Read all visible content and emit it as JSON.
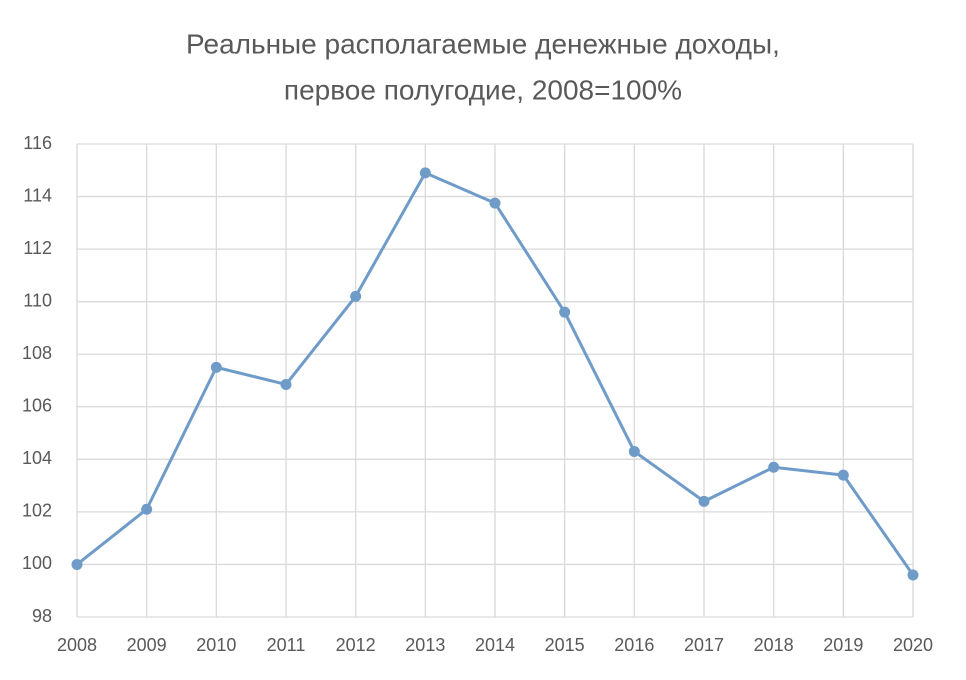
{
  "chart_data": {
    "type": "line",
    "title": [
      "Реальные располагаемые денежные доходы,",
      "первое полугодие, 2008=100%"
    ],
    "x": [
      2008,
      2009,
      2010,
      2011,
      2012,
      2013,
      2014,
      2015,
      2016,
      2017,
      2018,
      2019,
      2020
    ],
    "values": [
      100,
      102.1,
      107.5,
      106.85,
      110.2,
      114.9,
      113.75,
      109.6,
      104.3,
      102.4,
      103.7,
      103.4,
      99.6
    ],
    "color": "#6f9bc9",
    "xlim": [
      2008,
      2020
    ],
    "xticks": [
      2008,
      2009,
      2010,
      2011,
      2012,
      2013,
      2014,
      2015,
      2016,
      2017,
      2018,
      2019,
      2020
    ],
    "ylim": [
      98,
      116
    ],
    "yticks": [
      98,
      100,
      102,
      104,
      106,
      108,
      110,
      112,
      114,
      116
    ],
    "grid": true
  }
}
